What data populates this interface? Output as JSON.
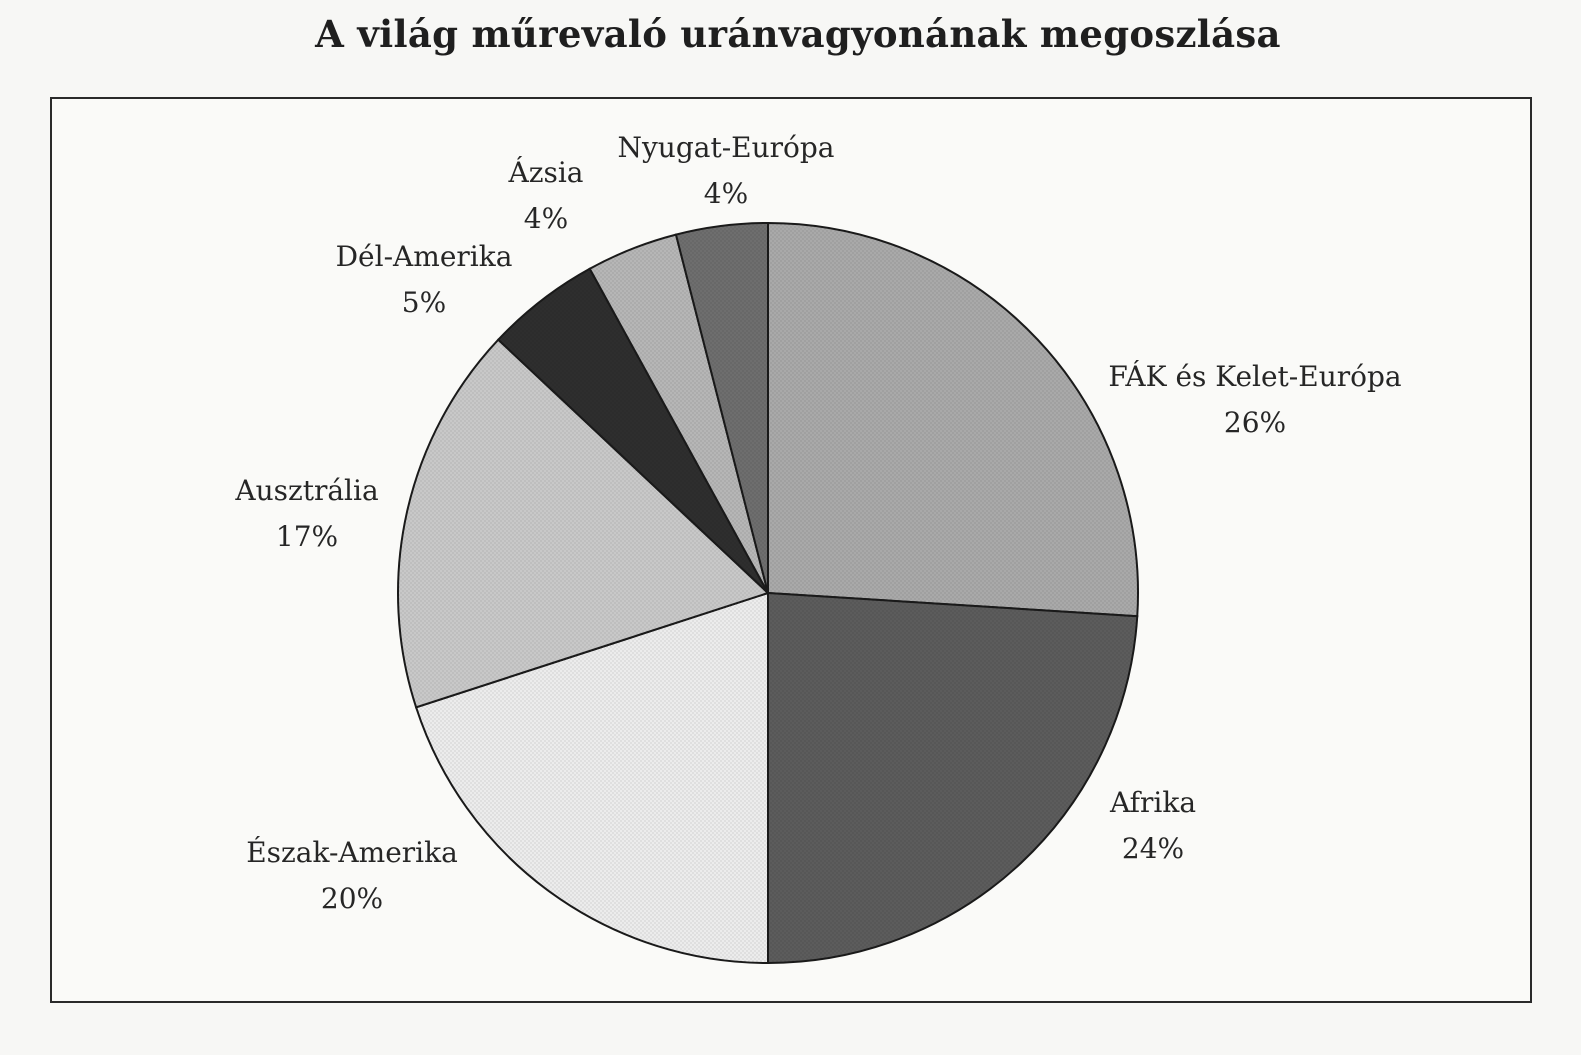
{
  "chart_data": {
    "type": "pie",
    "title": "A világ műrevaló uránvagyonának megoszlása",
    "slices": [
      {
        "label": "FÁK és Kelet-Európa",
        "value": 26,
        "value_label": "26%",
        "color": "#a9a9a9"
      },
      {
        "label": "Afrika",
        "value": 24,
        "value_label": "24%",
        "color": "#5c5c5c"
      },
      {
        "label": "Észak-Amerika",
        "value": 20,
        "value_label": "20%",
        "color": "#ececec"
      },
      {
        "label": "Ausztrália",
        "value": 17,
        "value_label": "17%",
        "color": "#c8c8c8"
      },
      {
        "label": "Dél-Amerika",
        "value": 5,
        "value_label": "5%",
        "color": "#2e2e2e"
      },
      {
        "label": "Ázsia",
        "value": 4,
        "value_label": "4%",
        "color": "#b6b6b6"
      },
      {
        "label": "Nyugat-Európa",
        "value": 4,
        "value_label": "4%",
        "color": "#6e6e6e"
      }
    ],
    "legend": "none",
    "grid": false
  }
}
